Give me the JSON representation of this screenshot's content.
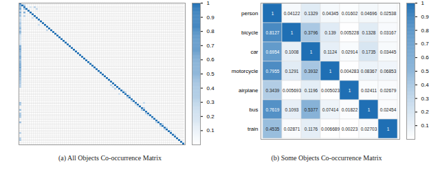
{
  "chart_data": [
    {
      "type": "heatmap",
      "caption": "(a) All Objects Co-occurrence Matrix",
      "size": 80,
      "tick_labels": false,
      "data_labels": false,
      "colors": [
        "#ffffff",
        "#1f6fb4"
      ],
      "clim": [
        0,
        1
      ],
      "cticks": [
        0.1,
        0.2,
        0.3,
        0.4,
        0.5,
        0.6,
        0.7,
        0.8,
        0.9,
        1
      ],
      "cells": [
        [
          0,
          0,
          1
        ],
        [
          1,
          1,
          1
        ],
        [
          2,
          2,
          1
        ],
        [
          3,
          3,
          1
        ],
        [
          4,
          4,
          1
        ],
        [
          5,
          5,
          1
        ],
        [
          6,
          6,
          1
        ],
        [
          7,
          7,
          1
        ],
        [
          8,
          8,
          1
        ],
        [
          9,
          9,
          1
        ],
        [
          10,
          10,
          1
        ],
        [
          11,
          11,
          1
        ],
        [
          12,
          12,
          1
        ],
        [
          13,
          13,
          1
        ],
        [
          14,
          14,
          1
        ],
        [
          15,
          15,
          1
        ],
        [
          16,
          16,
          1
        ],
        [
          17,
          17,
          1
        ],
        [
          18,
          18,
          1
        ],
        [
          19,
          19,
          1
        ],
        [
          20,
          20,
          1
        ],
        [
          21,
          21,
          1
        ],
        [
          22,
          22,
          1
        ],
        [
          23,
          23,
          1
        ],
        [
          24,
          24,
          1
        ],
        [
          25,
          25,
          1
        ],
        [
          26,
          26,
          1
        ],
        [
          27,
          27,
          1
        ],
        [
          28,
          28,
          1
        ],
        [
          29,
          29,
          1
        ],
        [
          30,
          30,
          1
        ],
        [
          31,
          31,
          1
        ],
        [
          32,
          32,
          1
        ],
        [
          33,
          33,
          1
        ],
        [
          34,
          34,
          1
        ],
        [
          35,
          35,
          1
        ],
        [
          36,
          36,
          1
        ],
        [
          37,
          37,
          1
        ],
        [
          38,
          38,
          1
        ],
        [
          39,
          39,
          1
        ],
        [
          40,
          40,
          1
        ],
        [
          41,
          41,
          1
        ],
        [
          42,
          42,
          1
        ],
        [
          43,
          43,
          1
        ],
        [
          44,
          44,
          1
        ],
        [
          45,
          45,
          1
        ],
        [
          46,
          46,
          1
        ],
        [
          47,
          47,
          1
        ],
        [
          48,
          48,
          1
        ],
        [
          49,
          49,
          1
        ],
        [
          50,
          50,
          1
        ],
        [
          51,
          51,
          1
        ],
        [
          52,
          52,
          1
        ],
        [
          53,
          53,
          1
        ],
        [
          54,
          54,
          1
        ],
        [
          55,
          55,
          1
        ],
        [
          56,
          56,
          1
        ],
        [
          57,
          57,
          1
        ],
        [
          58,
          58,
          1
        ],
        [
          59,
          59,
          1
        ],
        [
          60,
          60,
          1
        ],
        [
          61,
          61,
          1
        ],
        [
          62,
          62,
          1
        ],
        [
          63,
          63,
          1
        ],
        [
          64,
          64,
          1
        ],
        [
          65,
          65,
          1
        ],
        [
          66,
          66,
          1
        ],
        [
          67,
          67,
          1
        ],
        [
          68,
          68,
          1
        ],
        [
          69,
          69,
          1
        ],
        [
          70,
          70,
          1
        ],
        [
          71,
          71,
          1
        ],
        [
          72,
          72,
          1
        ],
        [
          73,
          73,
          1
        ],
        [
          74,
          74,
          1
        ],
        [
          75,
          75,
          1
        ],
        [
          76,
          76,
          1
        ],
        [
          77,
          77,
          1
        ],
        [
          78,
          78,
          1
        ],
        [
          79,
          79,
          1
        ],
        [
          1,
          0,
          0.55
        ],
        [
          2,
          0,
          0.48
        ],
        [
          3,
          0,
          0.62
        ],
        [
          4,
          0,
          0.3
        ],
        [
          5,
          0,
          0.58
        ],
        [
          6,
          0,
          0.35
        ],
        [
          7,
          0,
          0.45
        ],
        [
          8,
          0,
          0.2
        ],
        [
          9,
          0,
          0.3
        ],
        [
          10,
          0,
          0.25
        ],
        [
          11,
          0,
          0.4
        ],
        [
          12,
          0,
          0.3
        ],
        [
          13,
          0,
          0.35
        ],
        [
          14,
          0,
          0.5
        ],
        [
          15,
          0,
          0.3
        ],
        [
          16,
          0,
          0.55
        ],
        [
          17,
          0,
          0.35
        ],
        [
          18,
          0,
          0.2
        ],
        [
          19,
          0,
          0.2
        ],
        [
          20,
          0,
          0.2
        ],
        [
          21,
          0,
          0.15
        ],
        [
          22,
          0,
          0.15
        ],
        [
          23,
          0,
          0.2
        ],
        [
          24,
          0,
          0.6
        ],
        [
          25,
          0,
          0.55
        ],
        [
          26,
          0,
          0.6
        ],
        [
          27,
          0,
          0.5
        ],
        [
          28,
          0,
          0.45
        ],
        [
          29,
          0,
          0.45
        ],
        [
          30,
          0,
          0.6
        ],
        [
          31,
          0,
          0.5
        ],
        [
          32,
          0,
          0.4
        ],
        [
          33,
          0,
          0.5
        ],
        [
          34,
          0,
          0.55
        ],
        [
          35,
          0,
          0.55
        ],
        [
          36,
          0,
          0.6
        ],
        [
          37,
          0,
          0.5
        ],
        [
          38,
          0,
          0.55
        ],
        [
          39,
          0,
          0.4
        ],
        [
          40,
          0,
          0.45
        ],
        [
          41,
          0,
          0.45
        ],
        [
          42,
          0,
          0.4
        ],
        [
          43,
          0,
          0.4
        ],
        [
          44,
          0,
          0.35
        ],
        [
          45,
          0,
          0.35
        ],
        [
          46,
          0,
          0.3
        ],
        [
          47,
          0,
          0.3
        ],
        [
          56,
          0,
          0.4
        ],
        [
          57,
          0,
          0.35
        ],
        [
          60,
          0,
          0.4
        ],
        [
          62,
          0,
          0.35
        ],
        [
          63,
          0,
          0.4
        ],
        [
          64,
          0,
          0.35
        ],
        [
          67,
          0,
          0.4
        ],
        [
          73,
          0,
          0.3
        ],
        [
          76,
          0,
          0.3
        ],
        [
          77,
          0,
          0.35
        ],
        [
          1,
          2,
          0.38
        ],
        [
          3,
          2,
          0.39
        ],
        [
          5,
          2,
          0.54
        ],
        [
          7,
          2,
          0.3
        ],
        [
          2,
          5,
          0.17
        ],
        [
          2,
          7,
          0.3
        ],
        [
          3,
          8,
          0.25
        ],
        [
          8,
          6,
          0.2
        ],
        [
          12,
          9,
          0.2
        ],
        [
          15,
          13,
          0.25
        ],
        [
          46,
          44,
          0.3
        ],
        [
          47,
          45,
          0.25
        ],
        [
          48,
          46,
          0.3
        ],
        [
          49,
          50,
          0.2
        ],
        [
          50,
          51,
          0.25
        ],
        [
          51,
          48,
          0.2
        ],
        [
          52,
          53,
          0.3
        ],
        [
          53,
          52,
          0.25
        ],
        [
          55,
          54,
          0.2
        ],
        [
          56,
          60,
          0.25
        ],
        [
          57,
          56,
          0.2
        ],
        [
          58,
          57,
          0.2
        ],
        [
          59,
          60,
          0.3
        ],
        [
          60,
          59,
          0.35
        ],
        [
          62,
          61,
          0.3
        ],
        [
          63,
          62,
          0.25
        ],
        [
          65,
          64,
          0.2
        ],
        [
          67,
          66,
          0.25
        ],
        [
          68,
          69,
          0.3
        ],
        [
          69,
          68,
          0.3
        ],
        [
          70,
          71,
          0.25
        ],
        [
          71,
          70,
          0.2
        ],
        [
          72,
          73,
          0.25
        ],
        [
          74,
          75,
          0.2
        ]
      ]
    },
    {
      "type": "heatmap",
      "caption": "(b) Some Objects Co-occurrence Matrix",
      "tick_labels": "y",
      "data_labels": true,
      "colors": [
        "#ffffff",
        "#1f6fb4"
      ],
      "clim": [
        0,
        1
      ],
      "cticks": [
        0.1,
        0.2,
        0.3,
        0.4,
        0.5,
        0.6,
        0.7,
        0.8,
        0.9,
        1
      ],
      "categories": [
        "person",
        "bicycle",
        "car",
        "motorcycle",
        "airplane",
        "bus",
        "train"
      ],
      "matrix": [
        [
          1,
          0.04122,
          0.1329,
          0.04345,
          0.01602,
          0.04696,
          0.02538
        ],
        [
          0.8127,
          1,
          0.3796,
          0.139,
          0.005228,
          0.1328,
          0.03167
        ],
        [
          0.6954,
          0.1008,
          1,
          0.1124,
          0.02914,
          0.1735,
          0.03445
        ],
        [
          0.7955,
          0.1291,
          0.3932,
          1,
          0.004283,
          0.08367,
          0.06853
        ],
        [
          0.3439,
          0.005693,
          0.1196,
          0.005023,
          1,
          0.02411,
          0.02679
        ],
        [
          0.7619,
          0.1093,
          0.5377,
          0.07414,
          0.01822,
          1,
          0.02454
        ],
        [
          0.4535,
          0.02871,
          0.1176,
          0.006689,
          0.00223,
          0.02703,
          1
        ]
      ]
    }
  ]
}
